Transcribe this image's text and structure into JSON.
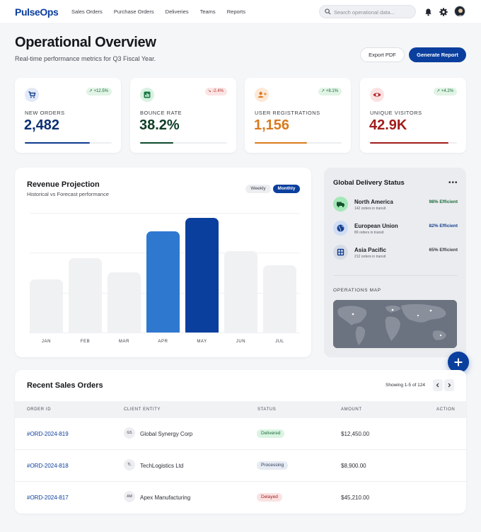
{
  "nav": {
    "brand": "PulseOps",
    "links": [
      "Sales Orders",
      "Purchase Orders",
      "Deliveries",
      "Teams",
      "Reports"
    ],
    "search_placeholder": "Search operational data..."
  },
  "header": {
    "title": "Operational Overview",
    "subtitle": "Real-time performance metrics for Q3 Fiscal Year.",
    "export_label": "Export PDF",
    "generate_label": "Generate Report"
  },
  "kpis": [
    {
      "label": "NEW ORDERS",
      "value": "2,482",
      "trend": "+12.5%",
      "direction": "up",
      "progress": 0.75,
      "color": "#0d3b8e",
      "icon": "cart-icon"
    },
    {
      "label": "BOUNCE RATE",
      "value": "38.2%",
      "trend": "-2.4%",
      "direction": "down",
      "progress": 0.38,
      "color": "#0d4a2c",
      "icon": "chart-icon"
    },
    {
      "label": "USER REGISTRATIONS",
      "value": "1,156",
      "trend": "+8.1%",
      "direction": "up",
      "progress": 0.6,
      "color": "#d97a1e",
      "icon": "user-add-icon"
    },
    {
      "label": "UNIQUE VISITORS",
      "value": "42.9K",
      "trend": "+4.2%",
      "direction": "up",
      "progress": 0.9,
      "color": "#a31c1c",
      "icon": "eye-icon"
    }
  ],
  "revenue": {
    "title": "Revenue Projection",
    "subtitle": "Historical vs Forecast performance",
    "toggle_weekly": "Weekly",
    "toggle_monthly": "Monthly"
  },
  "chart_data": {
    "type": "bar",
    "title": "Revenue Projection",
    "subtitle": "Historical vs Forecast performance",
    "categories": [
      "JAN",
      "FEB",
      "MAR",
      "APR",
      "MAY",
      "JUN",
      "JUL"
    ],
    "values": [
      46,
      64,
      52,
      87,
      99,
      70,
      58
    ],
    "ylim": [
      0,
      116
    ],
    "highlighted": [
      "APR",
      "MAY"
    ],
    "colors": {
      "default": "#f0f1f3",
      "APR": "#2f78d0",
      "MAY": "#0a3f9e"
    },
    "grid": true,
    "xlabel": "",
    "ylabel": ""
  },
  "delivery": {
    "title": "Global Delivery Status",
    "regions": [
      {
        "name": "North America",
        "sub": "142 orders in transit",
        "eff": "98% Efficient",
        "icon": "truck-icon"
      },
      {
        "name": "European Union",
        "sub": "89 orders in transit",
        "eff": "82% Efficient",
        "icon": "globe-icon"
      },
      {
        "name": "Asia Pacific",
        "sub": "212 orders in transit",
        "eff": "65% Efficient",
        "icon": "warehouse-icon"
      }
    ],
    "map_label": "OPERATIONS MAP"
  },
  "orders": {
    "title": "Recent Sales Orders",
    "showing": "Showing 1-5 of 124",
    "columns": [
      "ORDER ID",
      "CLIENT ENTITY",
      "STATUS",
      "AMOUNT",
      "ACTION"
    ],
    "rows": [
      {
        "id": "#ORD-2024-819",
        "initials": "GS",
        "client": "Global Synergy Corp",
        "status": "Delivered",
        "amount": "$12,450.00"
      },
      {
        "id": "#ORD-2024-818",
        "initials": "TL",
        "client": "TechLogistics Ltd",
        "status": "Processing",
        "amount": "$8,900.00"
      },
      {
        "id": "#ORD-2024-817",
        "initials": "AM",
        "client": "Apex Manufacturing",
        "status": "Delayed",
        "amount": "$45,210.00"
      }
    ]
  }
}
